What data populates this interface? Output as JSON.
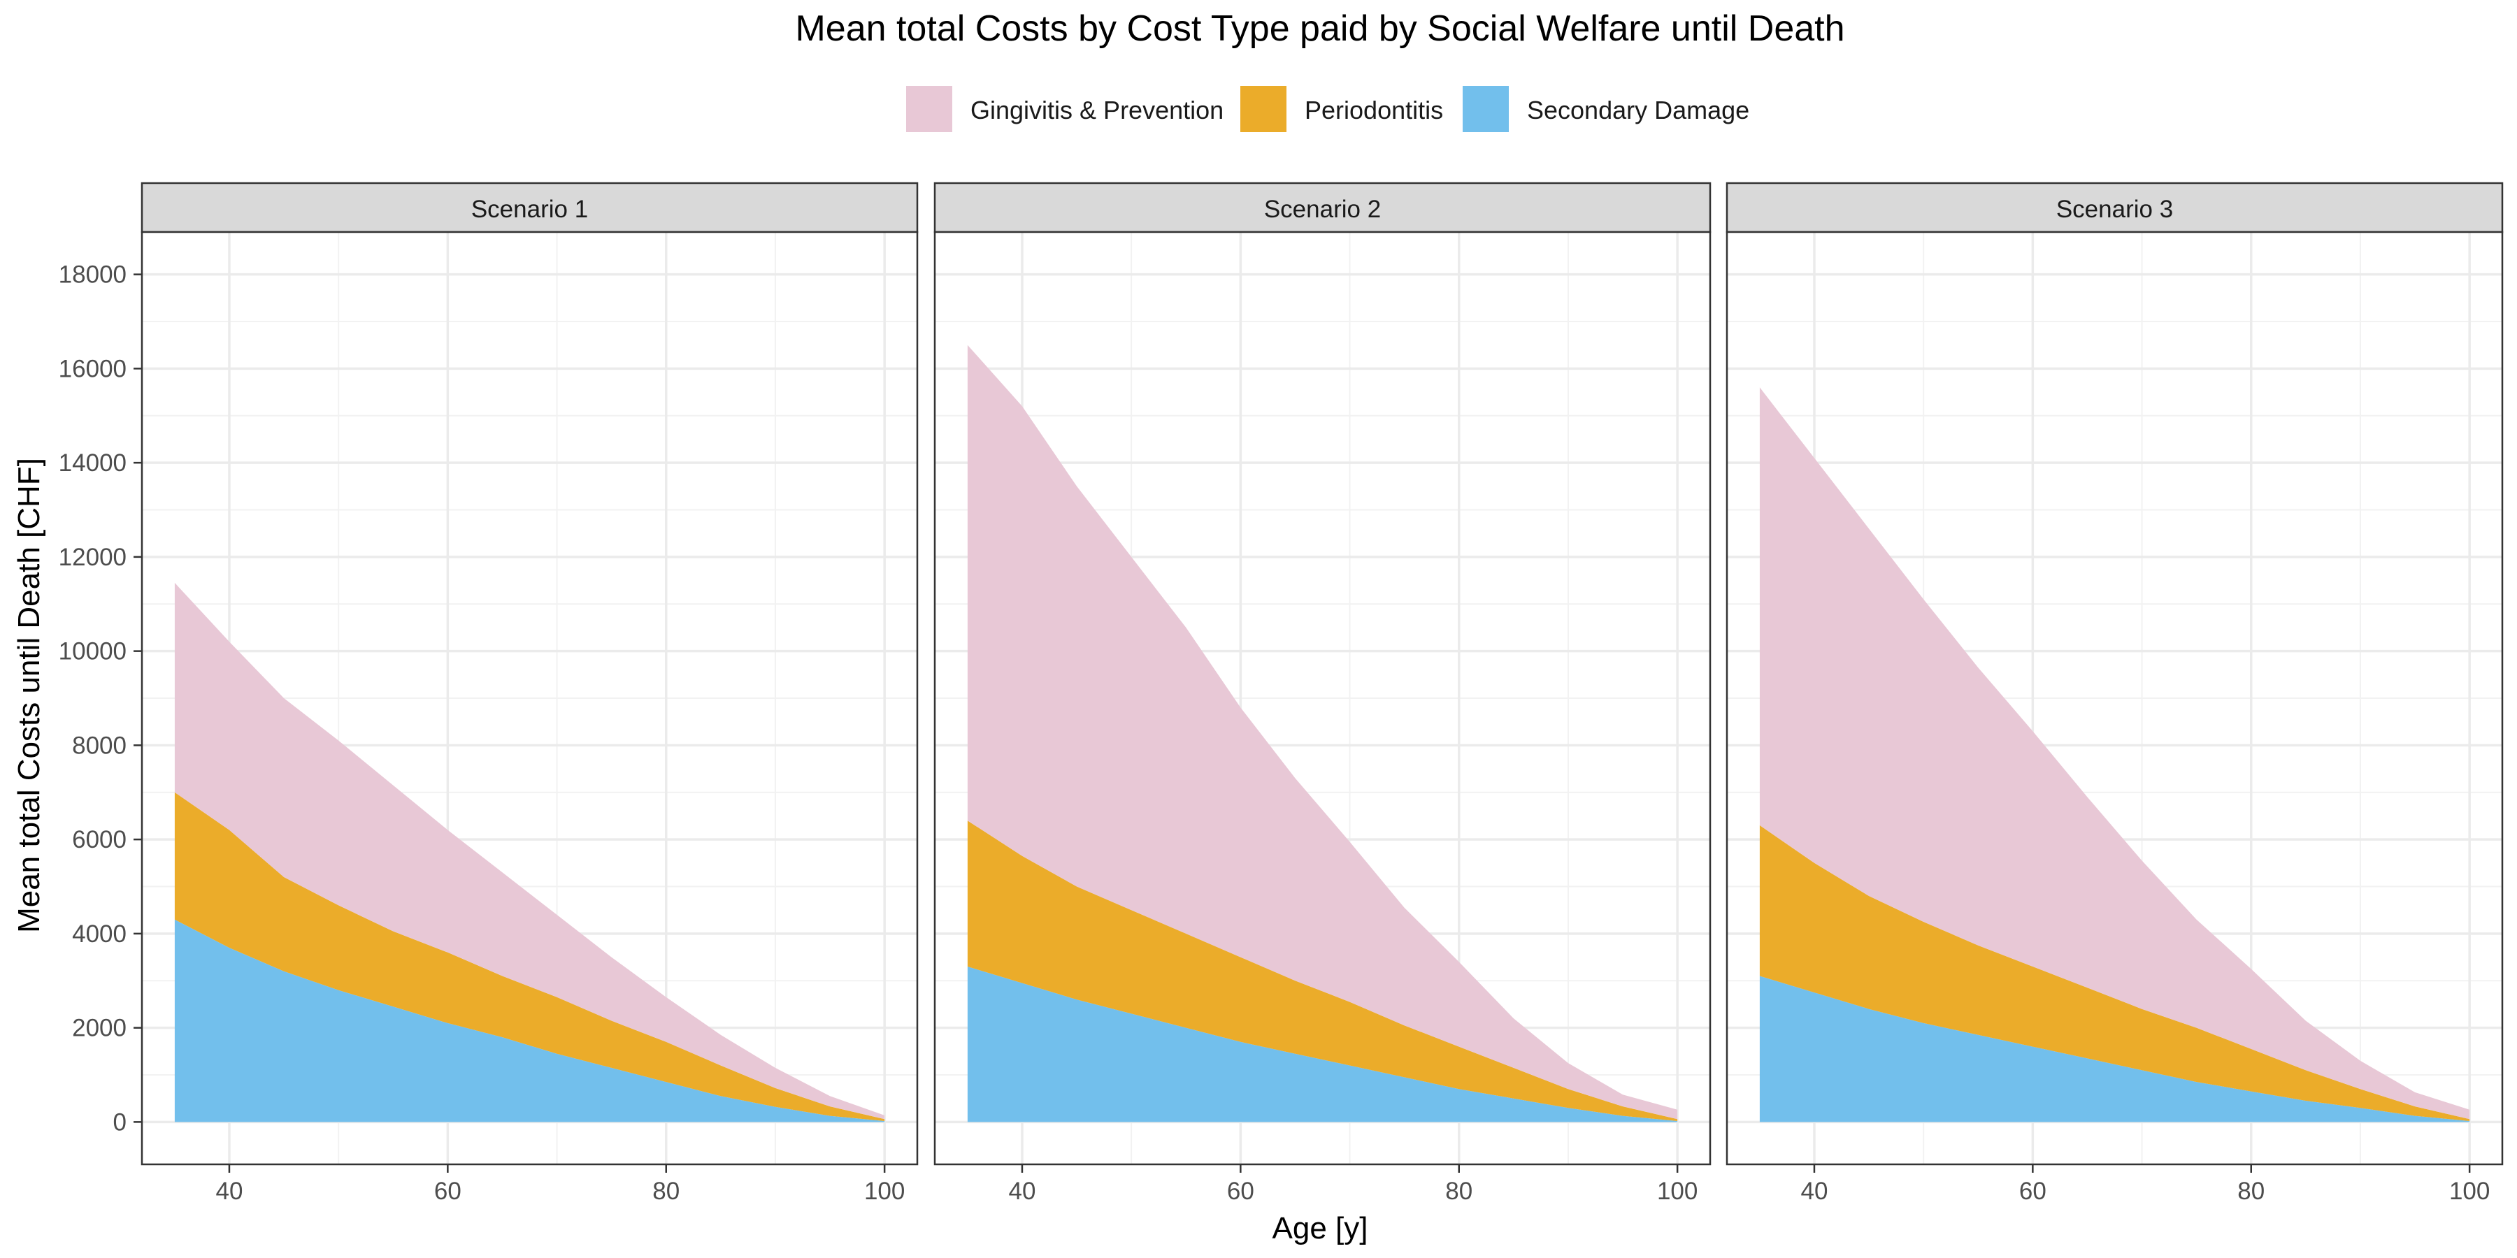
{
  "chart_data": {
    "type": "area",
    "stacked": true,
    "title": "Mean total Costs by Cost Type paid by Social Welfare until Death",
    "xlabel": "Age [y]",
    "ylabel": "Mean total Costs until Death [CHF]",
    "xlim": [
      32,
      103
    ],
    "ylim": [
      -900,
      18900
    ],
    "xticks": [
      40,
      60,
      80,
      100
    ],
    "yticks": [
      0,
      2000,
      4000,
      6000,
      8000,
      10000,
      12000,
      14000,
      16000,
      18000
    ],
    "grid": true,
    "legend_position": "top",
    "legend": [
      {
        "key": "gingivitis",
        "label": "Gingivitis & Prevention",
        "color": "#e8c8d6"
      },
      {
        "key": "periodontitis",
        "label": "Periodontitis",
        "color": "#ebac2a"
      },
      {
        "key": "secondary",
        "label": "Secondary Damage",
        "color": "#72bfec"
      }
    ],
    "x": [
      35,
      40,
      45,
      50,
      55,
      60,
      65,
      70,
      75,
      80,
      85,
      90,
      95,
      100
    ],
    "panels": [
      {
        "label": "Scenario 1",
        "series": [
          {
            "key": "secondary",
            "values": [
              4300,
              3700,
              3200,
              2800,
              2450,
              2100,
              1800,
              1450,
              1150,
              850,
              550,
              320,
              130,
              20
            ]
          },
          {
            "key": "periodontitis",
            "values": [
              2700,
              2500,
              2000,
              1800,
              1600,
              1500,
              1300,
              1200,
              1000,
              850,
              650,
              400,
              200,
              40
            ]
          },
          {
            "key": "gingivitis",
            "values": [
              4450,
              4000,
              3800,
              3500,
              3100,
              2600,
              2200,
              1750,
              1350,
              950,
              650,
              430,
              220,
              80
            ]
          }
        ]
      },
      {
        "label": "Scenario 2",
        "series": [
          {
            "key": "secondary",
            "values": [
              3300,
              2950,
              2600,
              2300,
              2000,
              1700,
              1450,
              1200,
              950,
              700,
              500,
              300,
              130,
              20
            ]
          },
          {
            "key": "periodontitis",
            "values": [
              3100,
              2700,
              2400,
              2200,
              2000,
              1800,
              1550,
              1350,
              1100,
              900,
              650,
              400,
              200,
              40
            ]
          },
          {
            "key": "gingivitis",
            "values": [
              10100,
              9550,
              8500,
              7500,
              6500,
              5300,
              4300,
              3400,
              2500,
              1800,
              1050,
              550,
              250,
              200
            ]
          }
        ]
      },
      {
        "label": "Scenario 3",
        "series": [
          {
            "key": "secondary",
            "values": [
              3100,
              2750,
              2400,
              2100,
              1850,
              1600,
              1350,
              1100,
              850,
              650,
              450,
              300,
              130,
              20
            ]
          },
          {
            "key": "periodontitis",
            "values": [
              3200,
              2750,
              2400,
              2150,
              1900,
              1700,
              1500,
              1300,
              1150,
              900,
              650,
              400,
              200,
              40
            ]
          },
          {
            "key": "gingivitis",
            "values": [
              9300,
              8600,
              7800,
              6850,
              5900,
              5000,
              4050,
              3150,
              2300,
              1700,
              1050,
              600,
              300,
              200
            ]
          }
        ]
      }
    ]
  }
}
